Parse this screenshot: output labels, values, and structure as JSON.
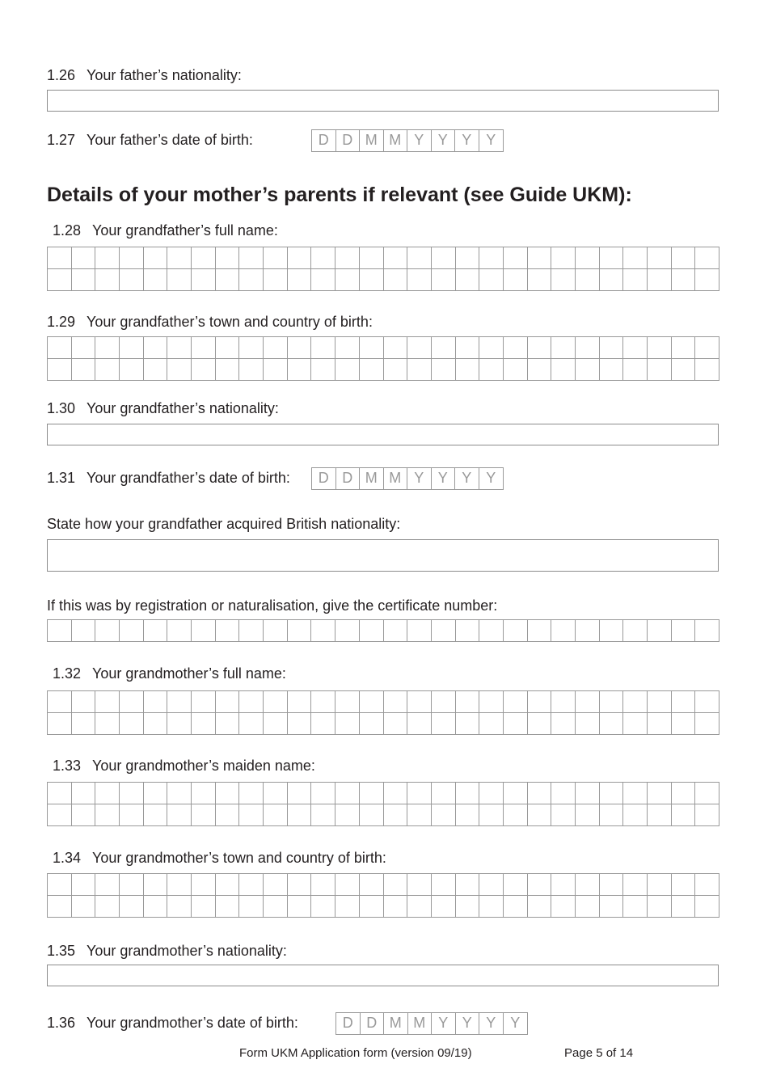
{
  "fields": {
    "f126": {
      "num": "1.26",
      "label": "Your father’s nationality:"
    },
    "f127": {
      "num": "1.27",
      "label": "Your father’s date of birth:"
    },
    "f128": {
      "num": "1.28",
      "label": "Your grandfather’s full name:"
    },
    "f129": {
      "num": "1.29",
      "label": "Your grandfather’s town and country of birth:"
    },
    "f130": {
      "num": "1.30",
      "label": "Your grandfather’s nationality:"
    },
    "f131": {
      "num": "1.31",
      "label": "Your grandfather’s date of birth:"
    },
    "acquired": {
      "label": "State how your grandfather acquired British nationality:"
    },
    "certificate": {
      "label": "If this was by registration or naturalisation, give the certificate number:"
    },
    "f132": {
      "num": "1.32",
      "label": "Your grandmother’s full name:"
    },
    "f133": {
      "num": "1.33",
      "label": "Your grandmother’s maiden name:"
    },
    "f134": {
      "num": "1.34",
      "label": "Your grandmother’s town and country of birth:"
    },
    "f135": {
      "num": "1.35",
      "label": "Your grandmother’s nationality:"
    },
    "f136": {
      "num": "1.36",
      "label": "Your grandmother’s date of birth:"
    }
  },
  "section_heading": "Details of your mother’s parents if relevant (see Guide UKM):",
  "date_placeholders": [
    "D",
    "D",
    "M",
    "M",
    "Y",
    "Y",
    "Y",
    "Y"
  ],
  "footer": {
    "form": "Form UKM Application form (version 09/19)",
    "page": "Page 5 of 14"
  }
}
